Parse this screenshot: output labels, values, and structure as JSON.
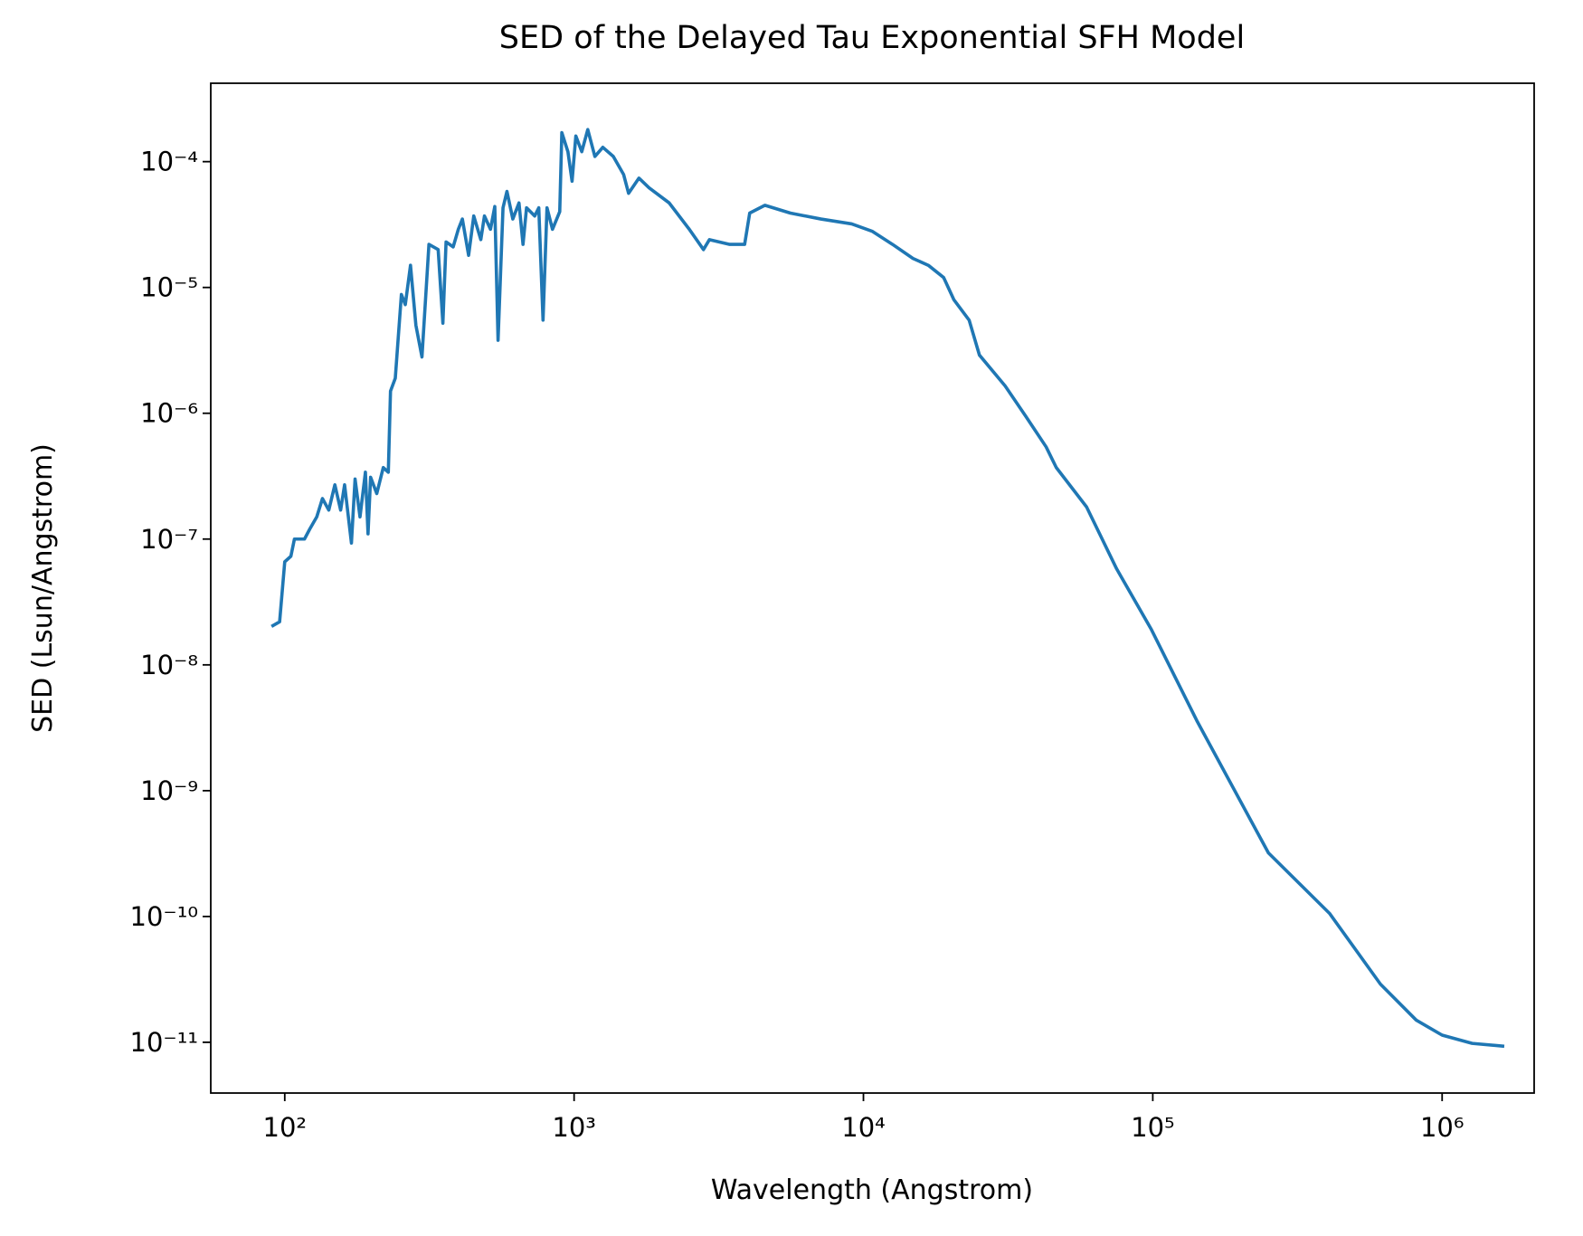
{
  "chart_data": {
    "type": "line",
    "title": "SED of the Delayed Tau Exponential SFH Model",
    "x_label": "Wavelength (Angstrom)",
    "y_label": "SED (Lsun/Angstrom)",
    "x_scale": "log",
    "y_scale": "log",
    "grid": false,
    "color": "#1f77b4",
    "xlim": [
      55.5,
      2080000
    ],
    "ylim": [
      3.95e-12,
      0.00042
    ],
    "xticks": [
      {
        "value": 100,
        "label": "10²"
      },
      {
        "value": 1000,
        "label": "10³"
      },
      {
        "value": 10000,
        "label": "10⁴"
      },
      {
        "value": 100000,
        "label": "10⁵"
      },
      {
        "value": 1000000,
        "label": "10⁶"
      }
    ],
    "yticks": [
      {
        "value": 1e-11,
        "label": "10⁻¹¹"
      },
      {
        "value": 1e-10,
        "label": "10⁻¹⁰"
      },
      {
        "value": 1e-09,
        "label": "10⁻⁹"
      },
      {
        "value": 1e-08,
        "label": "10⁻⁸"
      },
      {
        "value": 1e-07,
        "label": "10⁻⁷"
      },
      {
        "value": 1e-06,
        "label": "10⁻⁶"
      },
      {
        "value": 1e-05,
        "label": "10⁻⁵"
      },
      {
        "value": 0.0001,
        "label": "10⁻⁴"
      }
    ],
    "x": [
      90,
      96,
      100,
      105,
      108,
      117,
      122,
      129,
      135,
      142,
      149,
      156,
      161,
      170,
      175,
      182,
      190,
      194,
      198,
      208,
      219,
      228,
      232,
      241,
      253,
      261,
      272,
      284,
      298,
      315,
      339,
      352,
      361,
      382,
      398,
      411,
      432,
      450,
      476,
      490,
      514,
      532,
      546,
      568,
      586,
      614,
      645,
      666,
      685,
      731,
      755,
      781,
      806,
      842,
      892,
      907,
      952,
      984,
      1014,
      1063,
      1115,
      1180,
      1257,
      1366,
      1483,
      1543,
      1675,
      1816,
      2131,
      2501,
      2800,
      2936,
      3450,
      3885,
      4045,
      4565,
      5592,
      7131,
      9105,
      10713,
      12604,
      14830,
      16760,
      18928,
      20530,
      23190,
      25170,
      30880,
      36360,
      42800,
      46400,
      59040,
      75000,
      99000,
      142000,
      251000,
      408000,
      612000,
      814000,
      1000000,
      1270000,
      1640000
    ],
    "values": [
      2.02e-08,
      2.2e-08,
      6.6e-08,
      7.3e-08,
      1e-07,
      1e-07,
      1.2e-07,
      1.5e-07,
      2.1e-07,
      1.7e-07,
      2.7e-07,
      1.7e-07,
      2.7e-07,
      9.3e-08,
      3e-07,
      1.5e-07,
      3.4e-07,
      1.1e-07,
      3.1e-07,
      2.3e-07,
      3.7e-07,
      3.4e-07,
      1.5e-06,
      1.9e-06,
      8.8e-06,
      7.3e-06,
      1.5e-05,
      5e-06,
      2.8e-06,
      2.2e-05,
      2e-05,
      5.2e-06,
      2.3e-05,
      2.1e-05,
      2.9e-05,
      3.5e-05,
      1.8e-05,
      3.7e-05,
      2.4e-05,
      3.7e-05,
      2.9e-05,
      4.4e-05,
      3.8e-06,
      4.3e-05,
      5.8e-05,
      3.5e-05,
      4.7e-05,
      2.2e-05,
      4.3e-05,
      3.7e-05,
      4.3e-05,
      5.5e-06,
      4.3e-05,
      2.9e-05,
      4e-05,
      0.00017,
      0.00012,
      7e-05,
      0.00016,
      0.00012,
      0.00018,
      0.00011,
      0.00013,
      0.00011,
      7.9e-05,
      5.6e-05,
      7.4e-05,
      6.2e-05,
      4.7e-05,
      2.9e-05,
      2e-05,
      2.4e-05,
      2.2e-05,
      2.2e-05,
      3.9e-05,
      4.5e-05,
      3.9e-05,
      3.5e-05,
      3.2e-05,
      2.8e-05,
      2.2e-05,
      1.7e-05,
      1.5e-05,
      1.2e-05,
      8e-06,
      5.5e-06,
      2.9e-06,
      1.65e-06,
      9.5e-07,
      5.4e-07,
      3.7e-07,
      1.8e-07,
      5.8e-08,
      1.9e-08,
      3.6e-09,
      3.2e-10,
      1.06e-10,
      2.9e-11,
      1.5e-11,
      1.14e-11,
      9.8e-12,
      9.3e-12
    ]
  }
}
